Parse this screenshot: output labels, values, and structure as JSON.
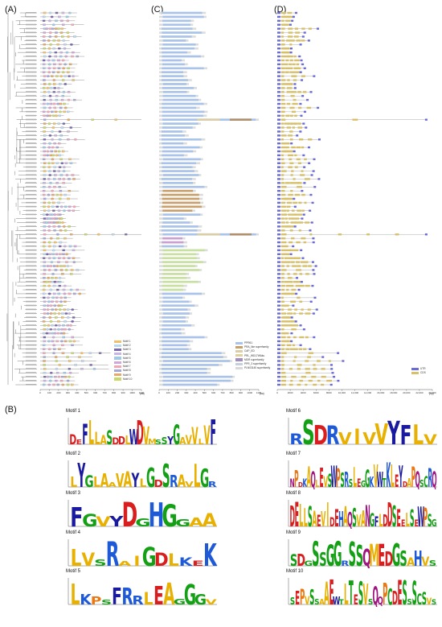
{
  "panels": {
    "a": "(A)",
    "b": "(B)",
    "c": "(C)",
    "d": "(D)"
  },
  "motif_legend": [
    "Motif 1",
    "Motif 2",
    "Motif 3",
    "Motif 4",
    "Motif 5",
    "Motif 6",
    "Motif 7",
    "Motif 8",
    "Motif 9",
    "Motif 10"
  ],
  "motif_colors": [
    "#f2c06b",
    "#b9d7f0",
    "#7a6bb0",
    "#c9b3e0",
    "#9ec9e8",
    "#d4a5d8",
    "#f0a8b8",
    "#a8a8d8",
    "#e6a96b",
    "#c8d86b"
  ],
  "domain_legend": [
    "PPR61",
    "PRA_like superfamily",
    "CAP_ED",
    "PRL_WD17WAku",
    "MDR superfamily",
    "PPR_3 superfamily",
    "PLN03145 superfamily"
  ],
  "domain_colors": [
    "#a9c3ea",
    "#c9a06b",
    "#d8cfa8",
    "#e0d09a",
    "#a38cc0",
    "#c4cfe0",
    "#d9d9d9"
  ],
  "gene_legend": [
    "UTR",
    "CDS"
  ],
  "gene_colors": [
    "#6b6bd8",
    "#d8c06b"
  ],
  "axis_a": {
    "ticks": [
      "0",
      "100",
      "200",
      "300",
      "400",
      "500",
      "600",
      "700",
      "800",
      "900",
      "1000",
      "1100"
    ],
    "unit": "(aa)"
  },
  "axis_c": {
    "ticks": [
      "0",
      "100",
      "200",
      "300",
      "400",
      "500",
      "600",
      "700",
      "800",
      "900",
      "1000",
      "1100"
    ],
    "unit": "(aa)"
  },
  "axis_d": {
    "ticks": [
      "0",
      "2000",
      "4000",
      "6000",
      "8000",
      "10,000",
      "12,000",
      "14,000",
      "16,000",
      "18,000",
      "20,000",
      "22,000",
      "24,000"
    ],
    "unit": "(bp)"
  },
  "motifs": [
    {
      "title": "Motif 1",
      "seq": "DEFLLASDDLWDVMSSYGAVVLVF"
    },
    {
      "title": "Motif 2",
      "seq": "LYGLAAVAYLGDSRAVLGR"
    },
    {
      "title": "Motif 3",
      "seq": "FGVYDGHGGAA"
    },
    {
      "title": "Motif 4",
      "seq": "LVSRAIGDLKEK"
    },
    {
      "title": "Motif 5",
      "seq": "LKPSFRRLEAGGGV"
    },
    {
      "title": "Motif 6",
      "seq": "RSDRVIVVYFLV"
    },
    {
      "title": "Motif 7",
      "seq": "NPDKAQLEVSWPSRSLEGGKVWTKLEYDAPQSCRQ"
    },
    {
      "title": "Motif 8",
      "seq": "DELLSAEVIDEHAQSVANGFLDDSEELSEWPSG"
    },
    {
      "title": "Motif 9",
      "seq": "SDGSSGGRSSQMEDGSAHVS"
    },
    {
      "title": "Motif 10",
      "seq": "SEPVSSAAEWTLTESVSQQPCDESSSCSVS"
    }
  ]
}
